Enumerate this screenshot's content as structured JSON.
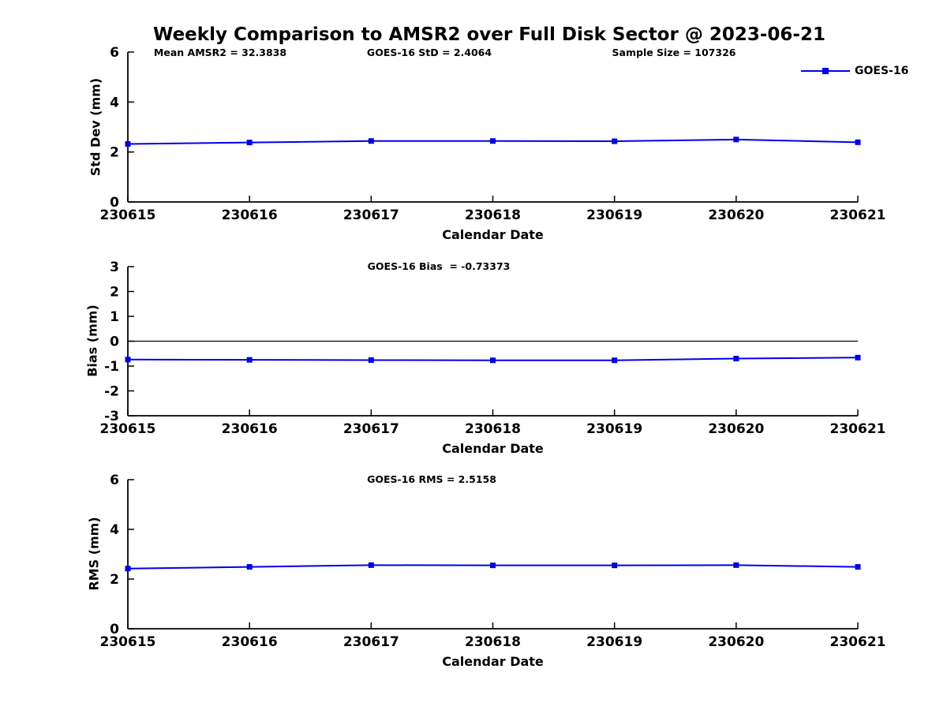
{
  "page": {
    "title": "Weekly Comparison to AMSR2 over Full Disk Sector @ 2023-06-21",
    "background": "#ffffff"
  },
  "legend": {
    "label": "GOES-16",
    "marker": "square"
  },
  "colors": {
    "series": "#0000ee",
    "axis": "#000000",
    "zero_line": "#000000",
    "text": "#000000"
  },
  "chart_data": [
    {
      "type": "line",
      "subplot": "std-dev",
      "annotations": [
        "Mean AMSR2 = 32.3838",
        "GOES-16 StD = 2.4064",
        "Sample Size = 107326"
      ],
      "categories": [
        "230615",
        "230616",
        "230617",
        "230618",
        "230619",
        "230620",
        "230621"
      ],
      "series": [
        {
          "name": "GOES-16",
          "marker": "square",
          "values": [
            2.32,
            2.38,
            2.44,
            2.44,
            2.43,
            2.5,
            2.39
          ]
        }
      ],
      "xlabel": "Calendar Date",
      "ylabel": "Std Dev (mm)",
      "ylim": [
        0,
        6
      ],
      "yticks": [
        0,
        2,
        4,
        6
      ],
      "grid": false,
      "legend_position": "upper-right"
    },
    {
      "type": "line",
      "subplot": "bias",
      "annotations": [
        "GOES-16 Bias  = -0.73373"
      ],
      "categories": [
        "230615",
        "230616",
        "230617",
        "230618",
        "230619",
        "230620",
        "230621"
      ],
      "series": [
        {
          "name": "GOES-16",
          "marker": "square",
          "values": [
            -0.74,
            -0.75,
            -0.76,
            -0.77,
            -0.77,
            -0.7,
            -0.66
          ]
        }
      ],
      "xlabel": "Calendar Date",
      "ylabel": "Bias (mm)",
      "ylim": [
        -3,
        3
      ],
      "yticks": [
        3,
        2,
        1,
        0,
        -1,
        -2,
        -3
      ],
      "zero_line": true,
      "grid": false
    },
    {
      "type": "line",
      "subplot": "rms",
      "annotations": [
        "GOES-16 RMS = 2.5158"
      ],
      "categories": [
        "230615",
        "230616",
        "230617",
        "230618",
        "230619",
        "230620",
        "230621"
      ],
      "series": [
        {
          "name": "GOES-16",
          "marker": "square",
          "values": [
            2.42,
            2.49,
            2.56,
            2.55,
            2.55,
            2.56,
            2.49
          ]
        }
      ],
      "xlabel": "Calendar Date",
      "ylabel": "RMS (mm)",
      "ylim": [
        0,
        6
      ],
      "yticks": [
        0,
        2,
        4,
        6
      ],
      "grid": false
    }
  ]
}
